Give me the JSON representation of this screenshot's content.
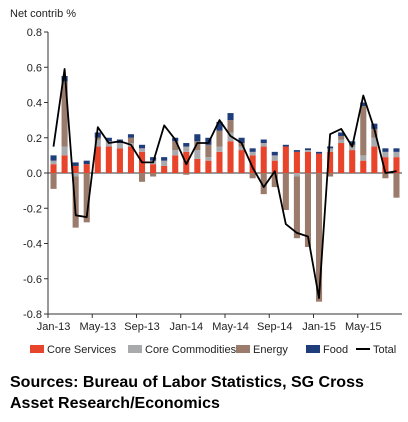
{
  "chart_data": {
    "type": "bar",
    "subtype": "stacked bar with line",
    "ylabel": "Net contrib %",
    "ylim": [
      -0.8,
      0.8
    ],
    "yticks": [
      -0.8,
      -0.6,
      -0.4,
      -0.2,
      0.0,
      0.2,
      0.4,
      0.6,
      0.8
    ],
    "x_tick_labels": [
      "Jan-13",
      "May-13",
      "Sep-13",
      "Jan-14",
      "May-14",
      "Sep-14",
      "Jan-15",
      "May-15"
    ],
    "x_tick_every": 4,
    "grid": false,
    "legend_position": "bottom",
    "categories": [
      "Jan-13",
      "Feb-13",
      "Mar-13",
      "Apr-13",
      "May-13",
      "Jun-13",
      "Jul-13",
      "Aug-13",
      "Sep-13",
      "Oct-13",
      "Nov-13",
      "Dec-13",
      "Jan-14",
      "Feb-14",
      "Mar-14",
      "Apr-14",
      "May-14",
      "Jun-14",
      "Jul-14",
      "Aug-14",
      "Sep-14",
      "Oct-14",
      "Nov-14",
      "Dec-14",
      "Jan-15",
      "Feb-15",
      "Mar-15",
      "Apr-15",
      "May-15",
      "Jun-15",
      "Jul-15",
      "Aug-15"
    ],
    "series": [
      {
        "name": "Core Services",
        "color": "#e8432b",
        "values": [
          0.05,
          0.1,
          0.04,
          0.05,
          0.15,
          0.15,
          0.14,
          0.15,
          0.12,
          0.05,
          0.04,
          0.1,
          0.12,
          0.08,
          0.07,
          0.12,
          0.18,
          0.13,
          0.1,
          0.15,
          0.07,
          0.15,
          0.12,
          0.12,
          0.11,
          0.12,
          0.17,
          0.13,
          0.07,
          0.15,
          0.09,
          0.09
        ]
      },
      {
        "name": "Core Commodities",
        "color": "#a8aaae",
        "values": [
          0.02,
          0.05,
          -0.02,
          0.0,
          0.04,
          0.03,
          0.03,
          0.02,
          0.02,
          0.02,
          0.03,
          0.03,
          0.03,
          0.05,
          0.02,
          0.03,
          0.05,
          0.02,
          0.02,
          0.02,
          0.03,
          0.0,
          -0.02,
          0.01,
          0.0,
          0.02,
          0.02,
          0.02,
          0.03,
          0.05,
          0.03,
          0.03
        ]
      },
      {
        "name": "Energy",
        "color": "#9b7b6b",
        "values": [
          -0.09,
          0.37,
          -0.29,
          -0.28,
          0.01,
          0.0,
          0.0,
          0.03,
          -0.05,
          -0.02,
          0.0,
          0.05,
          -0.01,
          0.05,
          0.07,
          0.09,
          0.07,
          0.02,
          -0.03,
          -0.12,
          -0.08,
          -0.21,
          -0.35,
          -0.42,
          -0.73,
          -0.02,
          0.02,
          0.01,
          0.28,
          0.05,
          -0.03,
          -0.14
        ]
      },
      {
        "name": "Food",
        "color": "#1f3d7a",
        "values": [
          0.03,
          0.03,
          0.02,
          0.02,
          0.03,
          0.02,
          0.02,
          0.02,
          0.02,
          0.02,
          0.02,
          0.02,
          0.02,
          0.04,
          0.04,
          0.05,
          0.04,
          0.03,
          0.02,
          0.02,
          0.02,
          0.01,
          0.01,
          0.01,
          0.01,
          0.01,
          0.02,
          0.02,
          0.02,
          0.03,
          0.02,
          0.02
        ]
      },
      {
        "name": "Total",
        "type": "line",
        "color": "#000000",
        "values": [
          0.15,
          0.59,
          -0.24,
          -0.25,
          0.26,
          0.17,
          0.18,
          0.16,
          0.06,
          0.06,
          0.27,
          0.19,
          0.05,
          0.17,
          0.17,
          0.3,
          0.21,
          0.17,
          0.03,
          -0.08,
          0.01,
          -0.29,
          -0.34,
          -0.36,
          -0.71,
          0.22,
          0.25,
          0.15,
          0.44,
          0.25,
          0.0,
          0.01
        ]
      }
    ]
  },
  "source_note": "Sources: Bureau of Labor Statistics, SG Cross Asset Research/Economics"
}
